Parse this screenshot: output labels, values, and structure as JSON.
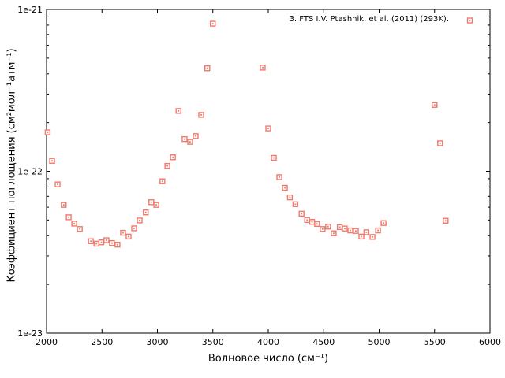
{
  "figure": {
    "background": "#ffffff",
    "frame_color": "#000000",
    "tick_color": "#000000"
  },
  "legend": {
    "label": "3. FTS I.V. Ptashnik, et al. (2011) (293K)."
  },
  "axes": {
    "x_label": "Волновое число (см⁻¹)",
    "y_label": "Коэффициент поглощения (см²мол⁻¹атм⁻¹)",
    "x_ticks": [
      {
        "v": 2000,
        "label": "2000"
      },
      {
        "v": 2500,
        "label": "2500"
      },
      {
        "v": 3000,
        "label": "3000"
      },
      {
        "v": 3500,
        "label": "3500"
      },
      {
        "v": 4000,
        "label": "4000"
      },
      {
        "v": 4500,
        "label": "4500"
      },
      {
        "v": 5000,
        "label": "5000"
      },
      {
        "v": 5500,
        "label": "5500"
      },
      {
        "v": 6000,
        "label": "6000"
      }
    ],
    "y_major_ticks": [
      {
        "v": 1e-21,
        "label": "1e-21"
      },
      {
        "v": 1e-22,
        "label": "1e-22"
      },
      {
        "v": 1e-23,
        "label": "1e-23"
      }
    ],
    "y_minor_ticks": [
      9e-22,
      8e-22,
      7e-22,
      6e-22,
      5e-22,
      4e-22,
      3e-22,
      2e-22,
      9e-23,
      8e-23,
      7e-23,
      6e-23,
      5e-23,
      4e-23,
      3e-23,
      2e-23
    ]
  },
  "chart_data": {
    "type": "scatter",
    "title": "",
    "xlabel": "Волновое число (см⁻¹)",
    "ylabel": "Коэффициент поглощения (см²мол⁻¹атм⁻¹)",
    "xlim": [
      2000,
      6000
    ],
    "ylim": [
      1e-23,
      1e-21
    ],
    "yscale": "log",
    "grid": false,
    "legend_position": "top-right",
    "legend": "3. FTS I.V. Ptashnik, et al. (2011) (293K).",
    "series": [
      {
        "name": "3. FTS I.V. Ptashnik, et al. (2011) (293K).",
        "marker": "open-square-with-dot",
        "color": "#f0796b",
        "points": [
          [
            2010,
            1.74e-22
          ],
          [
            2050,
            1.16e-22
          ],
          [
            2100,
            8.3e-23
          ],
          [
            2155,
            6.2e-23
          ],
          [
            2200,
            5.2e-23
          ],
          [
            2250,
            4.75e-23
          ],
          [
            2300,
            4.4e-23
          ],
          [
            2400,
            3.7e-23
          ],
          [
            2450,
            3.57e-23
          ],
          [
            2495,
            3.64e-23
          ],
          [
            2540,
            3.75e-23
          ],
          [
            2590,
            3.6e-23
          ],
          [
            2640,
            3.52e-23
          ],
          [
            2690,
            4.17e-23
          ],
          [
            2740,
            3.95e-23
          ],
          [
            2790,
            4.44e-23
          ],
          [
            2840,
            4.97e-23
          ],
          [
            2895,
            5.57e-23
          ],
          [
            2945,
            6.44e-23
          ],
          [
            2990,
            6.2e-23
          ],
          [
            3045,
            8.67e-23
          ],
          [
            3090,
            1.08e-22
          ],
          [
            3140,
            1.22e-22
          ],
          [
            3190,
            2.36e-22
          ],
          [
            3245,
            1.58e-22
          ],
          [
            3295,
            1.52e-22
          ],
          [
            3345,
            1.65e-22
          ],
          [
            3395,
            2.23e-22
          ],
          [
            3450,
            4.33e-22
          ],
          [
            3500,
            8.17e-22
          ],
          [
            3950,
            4.37e-22
          ],
          [
            4000,
            1.84e-22
          ],
          [
            4050,
            1.21e-22
          ],
          [
            4100,
            9.2e-23
          ],
          [
            4150,
            7.9e-23
          ],
          [
            4195,
            6.9e-23
          ],
          [
            4245,
            6.26e-23
          ],
          [
            4300,
            5.47e-23
          ],
          [
            4350,
            5e-23
          ],
          [
            4395,
            4.87e-23
          ],
          [
            4440,
            4.73e-23
          ],
          [
            4490,
            4.4e-23
          ],
          [
            4540,
            4.55e-23
          ],
          [
            4590,
            4.14e-23
          ],
          [
            4645,
            4.52e-23
          ],
          [
            4690,
            4.43e-23
          ],
          [
            4740,
            4.31e-23
          ],
          [
            4790,
            4.28e-23
          ],
          [
            4840,
            3.95e-23
          ],
          [
            4885,
            4.2e-23
          ],
          [
            4940,
            3.93e-23
          ],
          [
            4990,
            4.31e-23
          ],
          [
            5040,
            4.79e-23
          ],
          [
            5500,
            2.57e-22
          ],
          [
            5550,
            1.49e-22
          ],
          [
            5600,
            4.95e-23
          ]
        ]
      }
    ]
  }
}
